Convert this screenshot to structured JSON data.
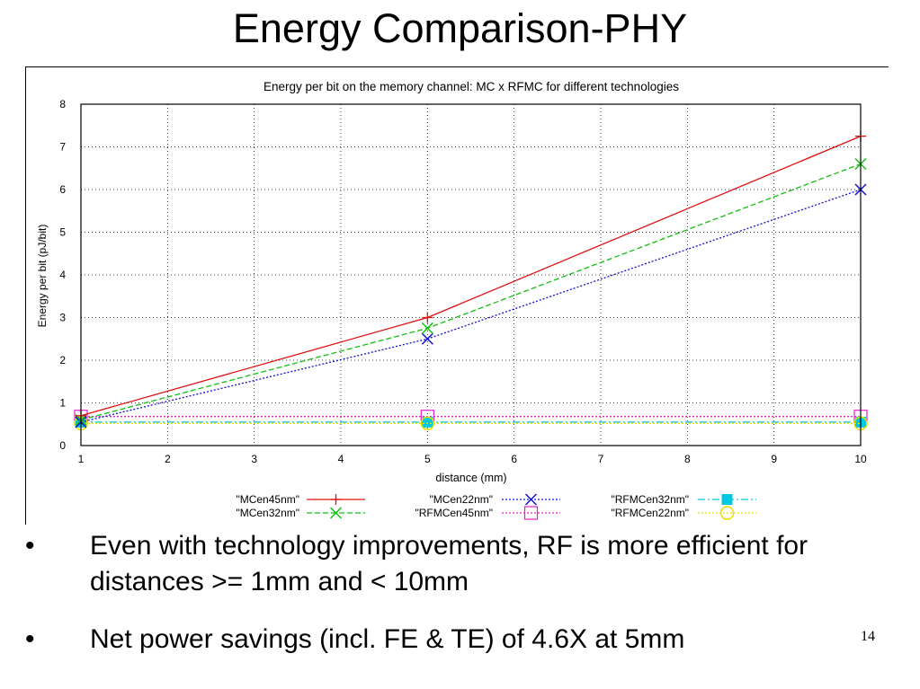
{
  "slide": {
    "title": "Energy Comparison-PHY",
    "page_number": "14",
    "bullets": [
      {
        "marker": "•",
        "text": "Even with technology improvements, RF is more efficient for distances >= 1mm and < 10mm"
      },
      {
        "marker": "•",
        "text": "Net power savings (incl. FE & TE) of 4.6X at 5mm"
      }
    ]
  },
  "chart_data": {
    "type": "line",
    "title": "Energy per bit on the memory channel: MC x RFMC for different technologies",
    "xlabel": "distance (mm)",
    "ylabel": "Energy per bit (pJ/bit)",
    "xlim": [
      1,
      10
    ],
    "ylim": [
      0,
      8
    ],
    "x_ticks": [
      1,
      2,
      3,
      4,
      5,
      6,
      7,
      8,
      9,
      10
    ],
    "y_ticks": [
      0,
      1,
      2,
      3,
      4,
      5,
      6,
      7,
      8
    ],
    "x": [
      1,
      5,
      10
    ],
    "grid": true,
    "legend_position": "bottom",
    "series": [
      {
        "name": "\"MCen45nm\"",
        "values": [
          0.7,
          3.0,
          7.25
        ],
        "color": "#e01010",
        "marker": "plus",
        "dash": "solid"
      },
      {
        "name": "\"MCen22nm\"",
        "values": [
          0.55,
          2.5,
          6.0
        ],
        "color": "#1010d0",
        "marker": "x",
        "dash": "dotted"
      },
      {
        "name": "\"RFMCen32nm\"",
        "values": [
          0.55,
          0.55,
          0.55
        ],
        "color": "#00c8e0",
        "marker": "filled-square",
        "dash": "dashdot"
      },
      {
        "name": "\"MCen32nm\"",
        "values": [
          0.6,
          2.75,
          6.6
        ],
        "color": "#10c010",
        "marker": "x",
        "dash": "dashed"
      },
      {
        "name": "\"RFMCen45nm\"",
        "values": [
          0.68,
          0.68,
          0.68
        ],
        "color": "#e020d0",
        "marker": "open-square",
        "dash": "dotted"
      },
      {
        "name": "\"RFMCen22nm\"",
        "values": [
          0.52,
          0.52,
          0.52
        ],
        "color": "#e8e000",
        "marker": "open-circle",
        "dash": "dotted"
      }
    ]
  }
}
